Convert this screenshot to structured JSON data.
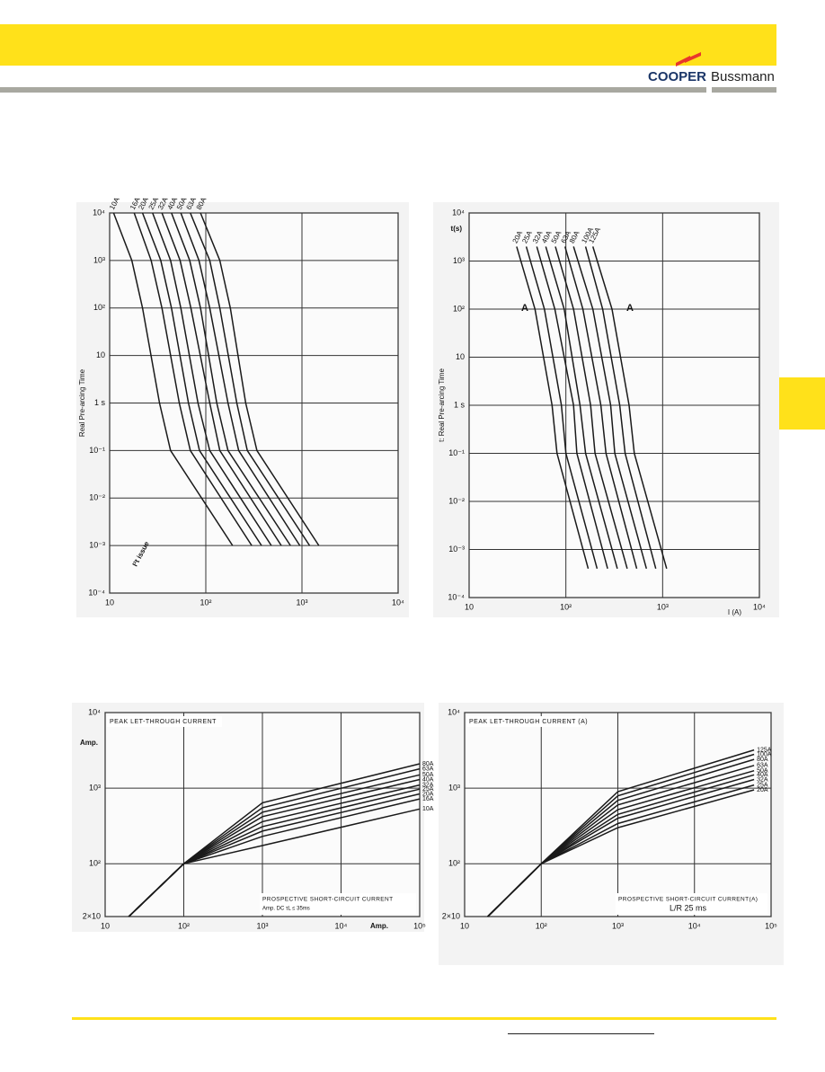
{
  "header": {
    "brand": "COOPER",
    "brand2": "Bussmann"
  },
  "chart_data": [
    {
      "type": "line",
      "log_x": true,
      "log_y": true,
      "grid": true,
      "color": "#1a1a1a",
      "ylabel": "Real Pre-arcing Time",
      "annotations": [
        "I²t issue"
      ],
      "xlim": [
        10,
        10000
      ],
      "ylim": [
        0.0001,
        10000
      ],
      "xticks": [
        10,
        {
          "value": 100,
          "label": "10²"
        },
        {
          "value": 1000,
          "label": "10³"
        },
        {
          "value": 10000,
          "label": "10⁴"
        }
      ],
      "yticks": [
        {
          "value": 10000,
          "label": "10⁴"
        },
        {
          "value": 1000,
          "label": "10³"
        },
        {
          "value": 100,
          "label": "10²"
        },
        10,
        {
          "value": 1,
          "label": "1 s"
        },
        {
          "value": 0.1,
          "label": "10⁻¹"
        },
        {
          "value": 0.01,
          "label": "10⁻²"
        },
        {
          "value": 0.001,
          "label": "10⁻³"
        },
        {
          "value": 0.0001,
          "label": "10⁻⁴"
        }
      ],
      "series": [
        {
          "name": "10A",
          "x": [
            11,
            17,
            22,
            33,
            43,
            190
          ],
          "values": [
            10000,
            1000,
            100,
            1,
            0.1,
            0.001
          ]
        },
        {
          "name": "16A",
          "x": [
            18,
            27,
            35,
            53,
            69,
            300
          ],
          "values": [
            10000,
            1000,
            100,
            1,
            0.1,
            0.001
          ]
        },
        {
          "name": "20A",
          "x": [
            22,
            34,
            44,
            66,
            86,
            380
          ],
          "values": [
            10000,
            1000,
            100,
            1,
            0.1,
            0.001
          ]
        },
        {
          "name": "25A",
          "x": [
            28,
            43,
            55,
            83,
            110,
            480
          ],
          "values": [
            10000,
            1000,
            100,
            1,
            0.1,
            0.001
          ]
        },
        {
          "name": "32A",
          "x": [
            35,
            54,
            70,
            110,
            140,
            610
          ],
          "values": [
            10000,
            1000,
            100,
            1,
            0.1,
            0.001
          ]
        },
        {
          "name": "40A",
          "x": [
            44,
            68,
            88,
            130,
            170,
            760
          ],
          "values": [
            10000,
            1000,
            100,
            1,
            0.1,
            0.001
          ]
        },
        {
          "name": "50A",
          "x": [
            55,
            85,
            110,
            170,
            220,
            950
          ],
          "values": [
            10000,
            1000,
            100,
            1,
            0.1,
            0.001
          ]
        },
        {
          "name": "63A",
          "x": [
            69,
            110,
            140,
            210,
            270,
            1200
          ],
          "values": [
            10000,
            1000,
            100,
            1,
            0.1,
            0.001
          ]
        },
        {
          "name": "80A",
          "x": [
            88,
            140,
            180,
            260,
            340,
            1500
          ],
          "values": [
            10000,
            1000,
            100,
            1,
            0.1,
            0.001
          ]
        }
      ]
    },
    {
      "type": "line",
      "log_x": true,
      "log_y": true,
      "grid": true,
      "color": "#1a1a1a",
      "ylabel": "t: Real Pre-arcing Time",
      "y_unit": "t(s)",
      "xlabel": "I (A)",
      "annotations": [
        "A",
        "A"
      ],
      "xlim": [
        10,
        10000
      ],
      "ylim": [
        0.0001,
        10000
      ],
      "xticks": [
        10,
        {
          "value": 100,
          "label": "10²"
        },
        {
          "value": 1000,
          "label": "10³"
        },
        {
          "value": 10000,
          "label": "10⁴"
        }
      ],
      "yticks": [
        {
          "value": 10000,
          "label": "10⁴"
        },
        {
          "value": 1000,
          "label": "10³"
        },
        {
          "value": 100,
          "label": "10²"
        },
        10,
        {
          "value": 1,
          "label": "1 s"
        },
        {
          "value": 0.1,
          "label": "10⁻¹"
        },
        {
          "value": 0.01,
          "label": "10⁻²"
        },
        {
          "value": 0.001,
          "label": "10⁻³"
        },
        {
          "value": 0.0001,
          "label": "10⁻⁴"
        }
      ],
      "series": [
        {
          "name": "20A",
          "x": [
            31,
            48,
            72,
            81,
            170
          ],
          "values": [
            2000,
            100,
            1,
            0.1,
            0.0004
          ]
        },
        {
          "name": "25A",
          "x": [
            39,
            60,
            90,
            100,
            210
          ],
          "values": [
            2000,
            100,
            1,
            0.1,
            0.0004
          ]
        },
        {
          "name": "32A",
          "x": [
            50,
            77,
            120,
            130,
            270
          ],
          "values": [
            2000,
            100,
            1,
            0.1,
            0.0004
          ]
        },
        {
          "name": "40A",
          "x": [
            62,
            96,
            140,
            160,
            340
          ],
          "values": [
            2000,
            100,
            1,
            0.1,
            0.0004
          ]
        },
        {
          "name": "50A",
          "x": [
            78,
            120,
            180,
            200,
            430
          ],
          "values": [
            2000,
            100,
            1,
            0.1,
            0.0004
          ]
        },
        {
          "name": "63A",
          "x": [
            98,
            150,
            230,
            260,
            540
          ],
          "values": [
            2000,
            100,
            1,
            0.1,
            0.0004
          ]
        },
        {
          "name": "80A",
          "x": [
            120,
            190,
            290,
            320,
            680
          ],
          "values": [
            2000,
            100,
            1,
            0.1,
            0.0004
          ]
        },
        {
          "name": "100A",
          "x": [
            160,
            240,
            360,
            410,
            850
          ],
          "values": [
            2000,
            100,
            1,
            0.1,
            0.0004
          ]
        },
        {
          "name": "125A",
          "x": [
            190,
            300,
            450,
            510,
            1100
          ],
          "values": [
            2000,
            100,
            1,
            0.1,
            0.0004
          ]
        }
      ]
    },
    {
      "type": "line",
      "log_x": true,
      "log_y": true,
      "grid": true,
      "color": "#1a1a1a",
      "title": "PEAK LET-THROUGH CURRENT",
      "y_unit": "Amp.",
      "xlabel": "PROSPECTIVE SHORT-CIRCUIT CURRENT",
      "note": "Amp. DC τL ≤ 35ms",
      "x_unit": "Amp.",
      "xlim": [
        10,
        100000
      ],
      "ylim": [
        20,
        10000
      ],
      "xticks": [
        10,
        {
          "value": 100,
          "label": "10²"
        },
        {
          "value": 1000,
          "label": "10³"
        },
        {
          "value": 10000,
          "label": "10⁴"
        },
        {
          "value": 100000,
          "label": "10⁵"
        }
      ],
      "yticks": [
        {
          "value": 10000,
          "label": "10⁴"
        },
        {
          "value": 1000,
          "label": "10³"
        },
        {
          "value": 100,
          "label": "10²"
        },
        {
          "value": 20,
          "label": "2×10"
        }
      ],
      "series": [
        {
          "name": "10A",
          "x": [
            20,
            100,
            1000,
            100000
          ],
          "values": [
            20,
            100,
            174,
            530
          ]
        },
        {
          "name": "16A",
          "x": [
            20,
            100,
            1000,
            100000
          ],
          "values": [
            20,
            100,
            230,
            720
          ]
        },
        {
          "name": "20A",
          "x": [
            20,
            100,
            1000,
            100000
          ],
          "values": [
            20,
            100,
            270,
            840
          ]
        },
        {
          "name": "25A",
          "x": [
            20,
            100,
            1000,
            100000
          ],
          "values": [
            20,
            100,
            310,
            970
          ]
        },
        {
          "name": "32A",
          "x": [
            20,
            100,
            1000,
            100000
          ],
          "values": [
            20,
            100,
            360,
            1100
          ]
        },
        {
          "name": "40A",
          "x": [
            20,
            100,
            1000,
            100000
          ],
          "values": [
            20,
            100,
            420,
            1300
          ]
        },
        {
          "name": "50A",
          "x": [
            20,
            100,
            1000,
            100000
          ],
          "values": [
            20,
            100,
            480,
            1500
          ]
        },
        {
          "name": "63A",
          "x": [
            20,
            100,
            1000,
            100000
          ],
          "values": [
            20,
            100,
            550,
            1800
          ]
        },
        {
          "name": "80A",
          "x": [
            20,
            100,
            1000,
            100000
          ],
          "values": [
            20,
            100,
            640,
            2100
          ]
        }
      ]
    },
    {
      "type": "line",
      "log_x": true,
      "log_y": true,
      "grid": true,
      "color": "#1a1a1a",
      "title": "PEAK LET-THROUGH CURRENT (A)",
      "xlabel": "PROSPECTIVE SHORT-CIRCUIT CURRENT(A)",
      "note": "L/R 25 ms",
      "xlim": [
        10,
        100000
      ],
      "ylim": [
        20,
        10000
      ],
      "xticks": [
        10,
        {
          "value": 100,
          "label": "10²"
        },
        {
          "value": 1000,
          "label": "10³"
        },
        {
          "value": 10000,
          "label": "10⁴"
        },
        {
          "value": 100000,
          "label": "10⁵"
        }
      ],
      "yticks": [
        {
          "value": 10000,
          "label": "10⁴"
        },
        {
          "value": 1000,
          "label": "10³"
        },
        {
          "value": 100,
          "label": "10²"
        },
        {
          "value": 20,
          "label": "2×10"
        }
      ],
      "series": [
        {
          "name": "20A",
          "x": [
            20,
            100,
            1000,
            60000
          ],
          "values": [
            20,
            100,
            300,
            950
          ]
        },
        {
          "name": "25A",
          "x": [
            20,
            100,
            1000,
            60000
          ],
          "values": [
            20,
            100,
            340,
            1100
          ]
        },
        {
          "name": "32A",
          "x": [
            20,
            100,
            1000,
            60000
          ],
          "values": [
            20,
            100,
            400,
            1300
          ]
        },
        {
          "name": "40A",
          "x": [
            20,
            100,
            1000,
            60000
          ],
          "values": [
            20,
            100,
            450,
            1500
          ]
        },
        {
          "name": "50A",
          "x": [
            20,
            100,
            1000,
            60000
          ],
          "values": [
            20,
            100,
            520,
            1700
          ]
        },
        {
          "name": "63A",
          "x": [
            20,
            100,
            1000,
            60000
          ],
          "values": [
            20,
            100,
            600,
            2000
          ]
        },
        {
          "name": "80A",
          "x": [
            20,
            100,
            1000,
            60000
          ],
          "values": [
            20,
            100,
            690,
            2400
          ]
        },
        {
          "name": "100A",
          "x": [
            20,
            100,
            1000,
            60000
          ],
          "values": [
            20,
            100,
            790,
            2800
          ]
        },
        {
          "name": "125A",
          "x": [
            20,
            100,
            1000,
            60000
          ],
          "values": [
            20,
            100,
            900,
            3200
          ]
        }
      ]
    }
  ]
}
